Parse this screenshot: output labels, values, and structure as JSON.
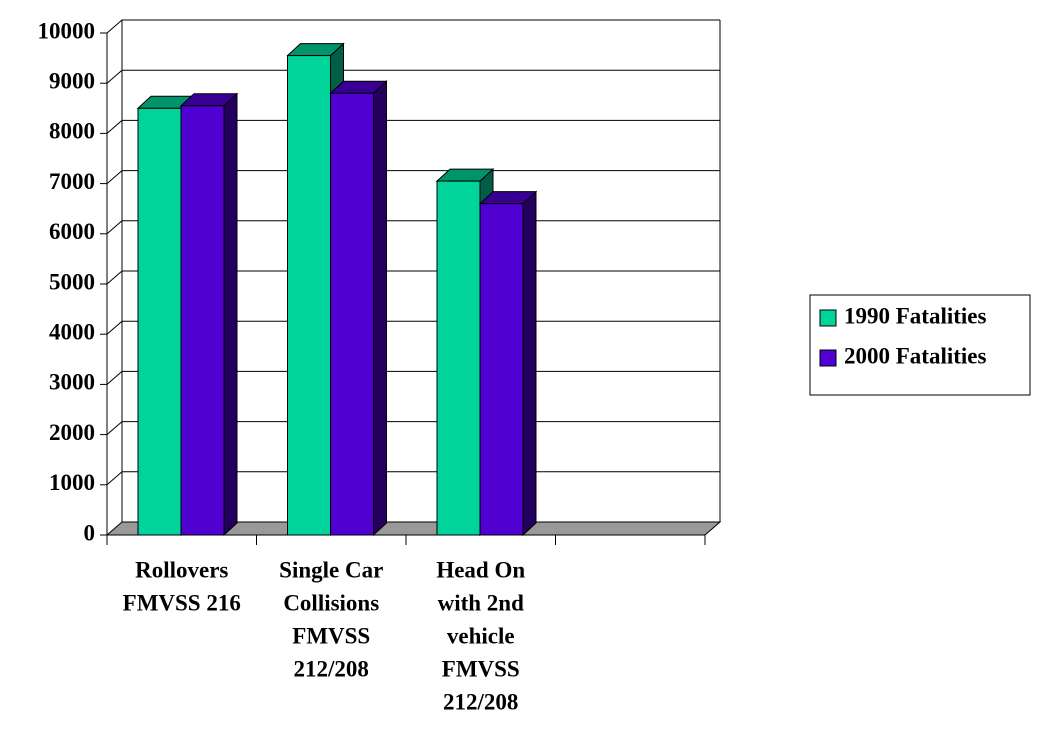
{
  "chart_data": {
    "type": "bar3d",
    "categories": [
      [
        "Rollovers",
        "FMVSS 216"
      ],
      [
        "Single Car",
        "Collisions",
        "FMVSS",
        "212/208"
      ],
      [
        "Head On",
        "with 2nd",
        "vehicle",
        "FMVSS",
        "212/208"
      ],
      null
    ],
    "series": [
      {
        "name": "1990 Fatalities",
        "color": "#00d49b",
        "values": [
          8500,
          9550,
          7050,
          null
        ]
      },
      {
        "name": "2000 Fatalities",
        "color": "#5000d0",
        "values": [
          8550,
          8800,
          6600,
          null
        ]
      }
    ],
    "ylim": [
      0,
      10000
    ],
    "yticks": [
      0,
      1000,
      2000,
      3000,
      4000,
      5000,
      6000,
      7000,
      8000,
      9000,
      10000
    ],
    "grid": true,
    "legend": "right"
  }
}
